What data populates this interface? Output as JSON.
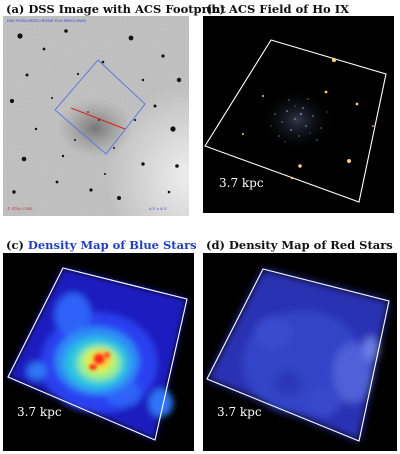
{
  "panels": {
    "a": {
      "title": "(a) DSS Image with ACS Footprint",
      "corner_top": "DSS POSS2/UKSTU ROSAT EUV RASS2 NVSS",
      "corner_bottom_left": "© STScI / DSS",
      "corner_bottom_right": "4.3' x 4.3'"
    },
    "b": {
      "title": "(b) ACS Field of Ho IX",
      "scale_label": "3.7 kpc"
    },
    "c": {
      "title_prefix": "(c) ",
      "title_highlight": "Density Map of Blue Stars",
      "scale_label": "3.7 kpc"
    },
    "d": {
      "title": "(d) Density Map of Red Stars",
      "scale_label": "3.7 kpc"
    }
  },
  "colors": {
    "title_blue": "#1f3fbf",
    "footprint": "#5a6fe0",
    "slit": "#e02020",
    "frame_white": "#ffffff",
    "panel_bg": "#000000"
  }
}
